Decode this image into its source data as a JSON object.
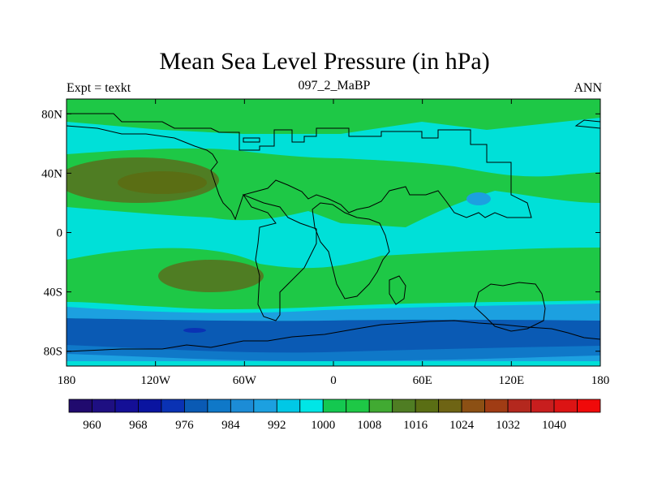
{
  "title": "Mean Sea Level Pressure (in hPa)",
  "left_string": "Expt = texkt",
  "center_string": "097_2_MaBP",
  "right_string": "ANN",
  "colors": {
    "cyan": "#00e0d8",
    "green": "#1ec846",
    "olive": "#4f7d23",
    "lightblue": "#1ca0e0",
    "midblue": "#0f78c8",
    "deepblue": "#0a5ab4"
  },
  "chart_data": {
    "type": "heatmap",
    "title": "Mean Sea Level Pressure (in hPa)",
    "variable": "Mean Sea Level Pressure",
    "units": "hPa",
    "xlim": [
      -180,
      180
    ],
    "ylim": [
      -90,
      90
    ],
    "x_ticks": [
      {
        "value": -180,
        "label": "180"
      },
      {
        "value": -120,
        "label": "120W"
      },
      {
        "value": -60,
        "label": "60W"
      },
      {
        "value": 0,
        "label": "0"
      },
      {
        "value": 60,
        "label": "60E"
      },
      {
        "value": 120,
        "label": "120E"
      },
      {
        "value": 180,
        "label": "180"
      }
    ],
    "y_ticks": [
      {
        "value": 80,
        "label": "80N"
      },
      {
        "value": 40,
        "label": "40N"
      },
      {
        "value": 0,
        "label": "0"
      },
      {
        "value": -40,
        "label": "40S"
      },
      {
        "value": -80,
        "label": "80S"
      }
    ],
    "colorbar": {
      "colors": [
        "#200a6e",
        "#1e0f82",
        "#140f96",
        "#0a14a0",
        "#0a32b4",
        "#0a5ab4",
        "#0f78c8",
        "#1c8cd6",
        "#1ca0e0",
        "#00c8e6",
        "#00e6e6",
        "#14c850",
        "#1ec846",
        "#41aa32",
        "#4f7d23",
        "#5a6e14",
        "#6e6414",
        "#8c5014",
        "#a03c14",
        "#b4281e",
        "#c81e1e",
        "#dc1414",
        "#f00a0a"
      ],
      "labeled_levels": [
        {
          "index": 1,
          "label": "960"
        },
        {
          "index": 3,
          "label": "968"
        },
        {
          "index": 5,
          "label": "976"
        },
        {
          "index": 7,
          "label": "984"
        },
        {
          "index": 9,
          "label": "992"
        },
        {
          "index": 11,
          "label": "1000"
        },
        {
          "index": 13,
          "label": "1008"
        },
        {
          "index": 15,
          "label": "1016"
        },
        {
          "index": 17,
          "label": "1024"
        },
        {
          "index": 19,
          "label": "1032"
        },
        {
          "index": 21,
          "label": "1040"
        }
      ]
    }
  }
}
